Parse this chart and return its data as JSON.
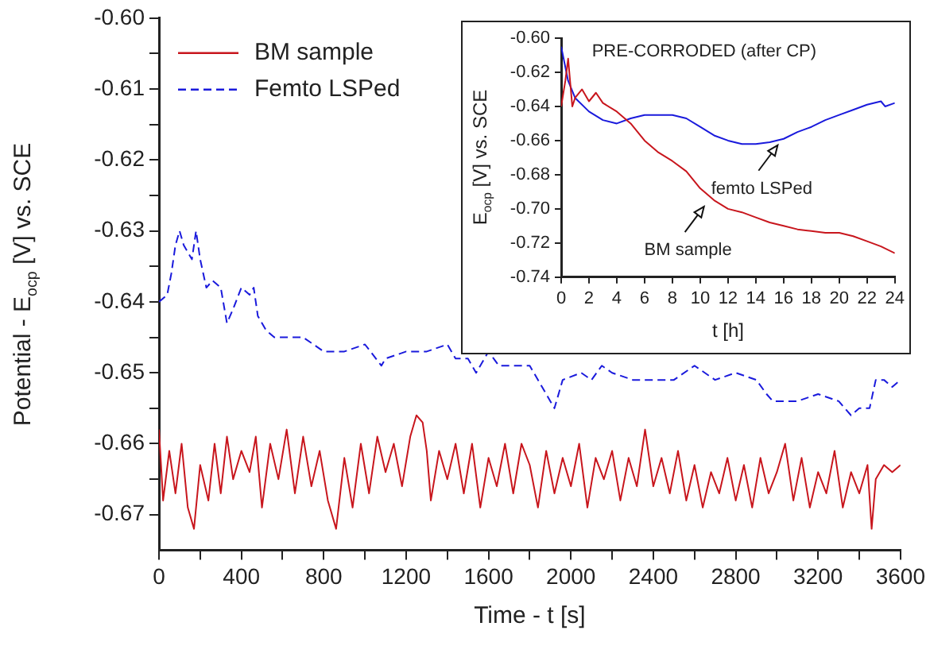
{
  "chart_data": [
    {
      "type": "line",
      "xlabel": "Time - t [s]",
      "ylabel": "Potential - E$_{ocp}$ [V]  vs. SCE",
      "xlim": [
        0,
        3600
      ],
      "xticks": [
        0,
        {
          "value": 200,
          "label": null
        },
        400,
        {
          "value": 600,
          "label": null
        },
        800,
        {
          "value": 1000,
          "label": null
        },
        1200,
        {
          "value": 1400,
          "label": null
        },
        1600,
        {
          "value": 1800,
          "label": null
        },
        2000,
        {
          "value": 2200,
          "label": null
        },
        2400,
        {
          "value": 2600,
          "label": null
        },
        2800,
        {
          "value": 3000,
          "label": null
        },
        3200,
        {
          "value": 3400,
          "label": null
        },
        3600
      ],
      "ylim": [
        -0.675,
        -0.6
      ],
      "yticks": [
        {
          "value": -0.6,
          "label": "-0.60"
        },
        {
          "value": -0.605,
          "label": null
        },
        -0.61,
        {
          "value": -0.615,
          "label": null
        },
        -0.62,
        {
          "value": -0.625,
          "label": null
        },
        -0.63,
        {
          "value": -0.635,
          "label": null
        },
        -0.64,
        {
          "value": -0.645,
          "label": null
        },
        -0.65,
        {
          "value": -0.655,
          "label": null
        },
        -0.66,
        {
          "value": -0.665,
          "label": null
        },
        -0.67
      ],
      "grid": false,
      "legend": "top left",
      "marker": "none",
      "series": [
        {
          "name": "BM sample",
          "color": "#c8161d",
          "line_style": "solid",
          "x": [
            0,
            20,
            50,
            80,
            110,
            140,
            170,
            200,
            240,
            270,
            300,
            330,
            360,
            400,
            440,
            470,
            500,
            540,
            580,
            620,
            660,
            700,
            740,
            780,
            820,
            860,
            900,
            940,
            980,
            1020,
            1060,
            1100,
            1140,
            1180,
            1220,
            1250,
            1280,
            1300,
            1320,
            1360,
            1400,
            1440,
            1480,
            1520,
            1560,
            1600,
            1640,
            1680,
            1720,
            1760,
            1800,
            1840,
            1880,
            1920,
            1960,
            2000,
            2040,
            2080,
            2120,
            2160,
            2200,
            2240,
            2280,
            2320,
            2360,
            2400,
            2440,
            2480,
            2520,
            2560,
            2600,
            2640,
            2680,
            2720,
            2760,
            2800,
            2840,
            2880,
            2920,
            2960,
            3000,
            3040,
            3080,
            3120,
            3160,
            3200,
            3240,
            3280,
            3320,
            3360,
            3400,
            3440,
            3460,
            3480,
            3520,
            3560,
            3600
          ],
          "values": [
            -0.658,
            -0.668,
            -0.661,
            -0.667,
            -0.66,
            -0.669,
            -0.672,
            -0.663,
            -0.668,
            -0.66,
            -0.667,
            -0.659,
            -0.665,
            -0.661,
            -0.664,
            -0.659,
            -0.669,
            -0.66,
            -0.665,
            -0.658,
            -0.667,
            -0.659,
            -0.666,
            -0.661,
            -0.668,
            -0.672,
            -0.662,
            -0.669,
            -0.66,
            -0.667,
            -0.659,
            -0.664,
            -0.66,
            -0.666,
            -0.659,
            -0.656,
            -0.657,
            -0.661,
            -0.668,
            -0.661,
            -0.665,
            -0.66,
            -0.667,
            -0.66,
            -0.669,
            -0.662,
            -0.666,
            -0.66,
            -0.667,
            -0.66,
            -0.663,
            -0.669,
            -0.661,
            -0.667,
            -0.662,
            -0.666,
            -0.66,
            -0.669,
            -0.662,
            -0.665,
            -0.661,
            -0.668,
            -0.662,
            -0.666,
            -0.658,
            -0.666,
            -0.662,
            -0.667,
            -0.661,
            -0.668,
            -0.663,
            -0.669,
            -0.664,
            -0.667,
            -0.662,
            -0.668,
            -0.663,
            -0.669,
            -0.662,
            -0.667,
            -0.664,
            -0.66,
            -0.668,
            -0.662,
            -0.669,
            -0.664,
            -0.667,
            -0.661,
            -0.669,
            -0.664,
            -0.667,
            -0.663,
            -0.672,
            -0.665,
            -0.663,
            -0.664,
            -0.663
          ]
        },
        {
          "name": "Femto LSPed",
          "color": "#1a1adc",
          "line_style": "dashed",
          "x": [
            0,
            40,
            60,
            80,
            100,
            120,
            140,
            160,
            180,
            200,
            230,
            260,
            300,
            330,
            360,
            400,
            440,
            460,
            480,
            520,
            560,
            600,
            650,
            700,
            750,
            800,
            900,
            1000,
            1080,
            1100,
            1200,
            1300,
            1400,
            1440,
            1500,
            1540,
            1600,
            1650,
            1700,
            1800,
            1860,
            1900,
            1920,
            1960,
            2050,
            2100,
            2150,
            2200,
            2300,
            2400,
            2500,
            2600,
            2700,
            2800,
            2900,
            2950,
            2980,
            3000,
            3100,
            3200,
            3300,
            3360,
            3400,
            3450,
            3480,
            3520,
            3560,
            3600
          ],
          "values": [
            -0.64,
            -0.639,
            -0.636,
            -0.632,
            -0.63,
            -0.632,
            -0.633,
            -0.634,
            -0.63,
            -0.634,
            -0.638,
            -0.637,
            -0.638,
            -0.643,
            -0.641,
            -0.638,
            -0.639,
            -0.638,
            -0.642,
            -0.644,
            -0.645,
            -0.645,
            -0.645,
            -0.645,
            -0.646,
            -0.647,
            -0.647,
            -0.646,
            -0.649,
            -0.648,
            -0.647,
            -0.647,
            -0.646,
            -0.648,
            -0.648,
            -0.65,
            -0.647,
            -0.649,
            -0.649,
            -0.649,
            -0.652,
            -0.654,
            -0.655,
            -0.651,
            -0.65,
            -0.651,
            -0.649,
            -0.65,
            -0.651,
            -0.651,
            -0.651,
            -0.649,
            -0.651,
            -0.65,
            -0.651,
            -0.653,
            -0.654,
            -0.654,
            -0.654,
            -0.653,
            -0.654,
            -0.656,
            -0.655,
            -0.655,
            -0.651,
            -0.651,
            -0.652,
            -0.651
          ]
        }
      ]
    },
    {
      "type": "line",
      "xlabel": "t [h]",
      "ylabel": "E$_{ocp}$ [V]  vs. SCE",
      "xlim": [
        0,
        24
      ],
      "xticks": [
        0,
        2,
        4,
        6,
        8,
        10,
        12,
        14,
        16,
        18,
        20,
        22,
        24
      ],
      "ylim": [
        -0.74,
        -0.6
      ],
      "yticks": [
        {
          "value": -0.6,
          "label": "-0.60"
        },
        -0.62,
        -0.64,
        -0.66,
        -0.68,
        {
          "value": -0.7,
          "label": "-0.70"
        },
        -0.72,
        -0.74
      ],
      "grid": false,
      "marker": "none",
      "annotations": [
        "PRE-CORRODED (after CP)",
        {
          "text": "femto LSPed",
          "x": 15.8,
          "y": -0.659
        },
        {
          "text": "BM sample",
          "x": 10.5,
          "y": -0.695
        }
      ],
      "series": [
        {
          "color": "#c8161d",
          "line_style": "solid",
          "x": [
            0,
            0.3,
            0.5,
            0.8,
            1,
            1.5,
            2,
            2.5,
            3,
            4,
            5,
            6,
            7,
            8,
            9,
            10,
            11,
            12,
            13,
            14,
            15,
            16,
            17,
            18,
            19,
            20,
            21,
            22,
            23,
            24
          ],
          "values": [
            -0.64,
            -0.625,
            -0.612,
            -0.64,
            -0.635,
            -0.63,
            -0.637,
            -0.632,
            -0.638,
            -0.643,
            -0.65,
            -0.66,
            -0.667,
            -0.672,
            -0.678,
            -0.688,
            -0.695,
            -0.7,
            -0.702,
            -0.705,
            -0.708,
            -0.71,
            -0.712,
            -0.713,
            -0.714,
            -0.714,
            -0.716,
            -0.719,
            -0.722,
            -0.726
          ]
        },
        {
          "color": "#1a1adc",
          "line_style": "solid",
          "x": [
            0,
            0.5,
            1,
            2,
            3,
            4,
            5,
            6,
            7,
            8,
            9,
            10,
            11,
            12,
            13,
            14,
            15,
            16,
            17,
            18,
            19,
            20,
            21,
            22,
            23,
            23.3,
            24
          ],
          "values": [
            -0.605,
            -0.625,
            -0.635,
            -0.643,
            -0.648,
            -0.65,
            -0.647,
            -0.645,
            -0.645,
            -0.645,
            -0.647,
            -0.652,
            -0.657,
            -0.66,
            -0.662,
            -0.662,
            -0.661,
            -0.659,
            -0.655,
            -0.652,
            -0.648,
            -0.645,
            -0.642,
            -0.639,
            -0.637,
            -0.64,
            -0.638
          ]
        }
      ]
    }
  ]
}
